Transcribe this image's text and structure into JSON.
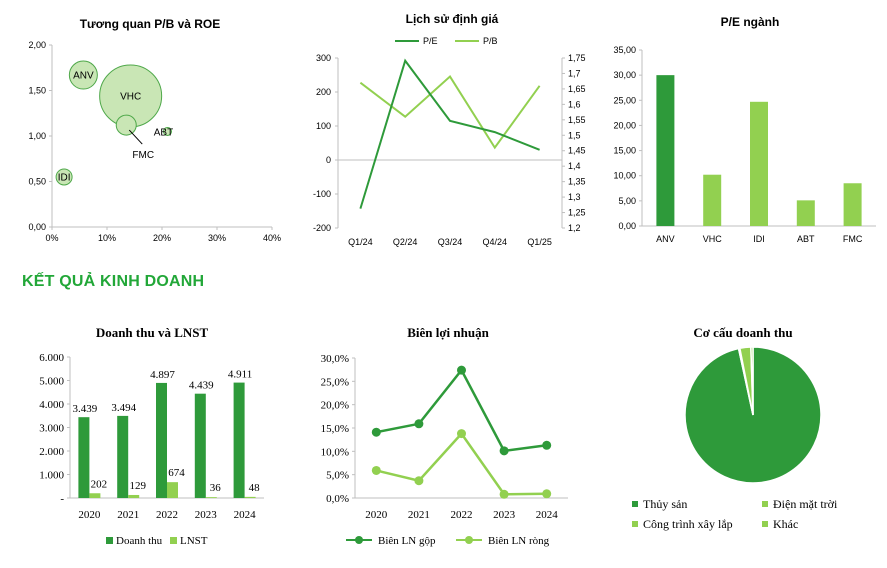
{
  "section_title": "KẾT QUẢ KINH DOANH",
  "colors": {
    "dark_green": "#2e9a3a",
    "light_green": "#92d050",
    "bubble_fill": "#c9e6b5",
    "bubble_stroke": "#4fa84a",
    "axis": "#bfbfbf"
  },
  "chart_data": [
    {
      "id": "pb_roe",
      "type": "scatter",
      "title": "Tương quan P/B và ROE",
      "xlim": [
        0,
        0.4
      ],
      "ylim": [
        0,
        2
      ],
      "x_ticks": [
        "0%",
        "10%",
        "20%",
        "30%",
        "40%"
      ],
      "y_ticks": [
        "0,00",
        "0,50",
        "1,00",
        "1,50",
        "2,00"
      ],
      "points": [
        {
          "label": "ANV",
          "x": 0.057,
          "y": 1.67,
          "size": 14
        },
        {
          "label": "VHC",
          "x": 0.143,
          "y": 1.44,
          "size": 31
        },
        {
          "label": "FMC",
          "x": 0.135,
          "y": 1.12,
          "size": 10
        },
        {
          "label": "ABT",
          "x": 0.21,
          "y": 1.05,
          "size": 4
        },
        {
          "label": "IDI",
          "x": 0.022,
          "y": 0.55,
          "size": 8
        }
      ]
    },
    {
      "id": "valuation_history",
      "type": "line",
      "title": "Lịch sử định giá",
      "categories": [
        "Q1/24",
        "Q2/24",
        "Q3/24",
        "Q4/24",
        "Q1/25"
      ],
      "y_left_ticks": [
        "-200",
        "-100",
        "0",
        "100",
        "200",
        "300"
      ],
      "y_right_ticks": [
        "1,2",
        "1,25",
        "1,3",
        "1,35",
        "1,4",
        "1,45",
        "1,5",
        "1,55",
        "1,6",
        "1,65",
        "1,7",
        "1,75"
      ],
      "ylim_left": [
        -200,
        300
      ],
      "ylim_right": [
        1.2,
        1.75
      ],
      "series": [
        {
          "name": "P/E",
          "axis": "left",
          "values": [
            -143,
            292,
            115,
            82,
            30
          ]
        },
        {
          "name": "P/B",
          "axis": "right",
          "values": [
            1.67,
            1.56,
            1.69,
            1.46,
            1.66
          ]
        }
      ]
    },
    {
      "id": "pe_industry",
      "type": "bar",
      "title": "P/E ngành",
      "categories": [
        "ANV",
        "VHC",
        "IDI",
        "ABT",
        "FMC"
      ],
      "values": [
        30.0,
        10.2,
        24.7,
        5.1,
        8.5
      ],
      "ylim": [
        0,
        35
      ],
      "y_ticks": [
        "0,00",
        "5,00",
        "10,00",
        "15,00",
        "20,00",
        "25,00",
        "30,00",
        "35,00"
      ]
    },
    {
      "id": "revenue_profit",
      "type": "bar",
      "title": "Doanh thu và LNST",
      "categories": [
        "2020",
        "2021",
        "2022",
        "2023",
        "2024"
      ],
      "ylim": [
        0,
        6000
      ],
      "y_ticks": [
        "-",
        "1.000",
        "2.000",
        "3.000",
        "4.000",
        "5.000",
        "6.000"
      ],
      "series": [
        {
          "name": "Doanh thu",
          "values": [
            3439,
            3494,
            4897,
            4439,
            4911
          ],
          "labels": [
            "3.439",
            "3.494",
            "4.897",
            "4.439",
            "4.911"
          ]
        },
        {
          "name": "LNST",
          "values": [
            202,
            129,
            674,
            36,
            48
          ],
          "labels": [
            "202",
            "129",
            "674",
            "36",
            "48"
          ]
        }
      ]
    },
    {
      "id": "profit_margin",
      "type": "line",
      "title": "Biên lợi nhuận",
      "categories": [
        "2020",
        "2021",
        "2022",
        "2023",
        "2024"
      ],
      "ylim": [
        0,
        0.3
      ],
      "y_ticks": [
        "0,0%",
        "5,0%",
        "10,0%",
        "15,0%",
        "20,0%",
        "25,0%",
        "30,0%"
      ],
      "series": [
        {
          "name": "Biên LN gộp",
          "values": [
            0.141,
            0.159,
            0.274,
            0.101,
            0.113
          ]
        },
        {
          "name": "Biên LN ròng",
          "values": [
            0.059,
            0.037,
            0.138,
            0.008,
            0.009
          ]
        }
      ]
    },
    {
      "id": "revenue_structure",
      "type": "pie",
      "title": "Cơ cấu doanh thu",
      "slices": [
        {
          "label": "Thủy sản",
          "value": 96.6
        },
        {
          "label": "Điện mặt trời",
          "value": 0.3
        },
        {
          "label": "Công trình xây lắp",
          "value": 2.6
        },
        {
          "label": "Khác",
          "value": 0.5
        }
      ]
    }
  ]
}
